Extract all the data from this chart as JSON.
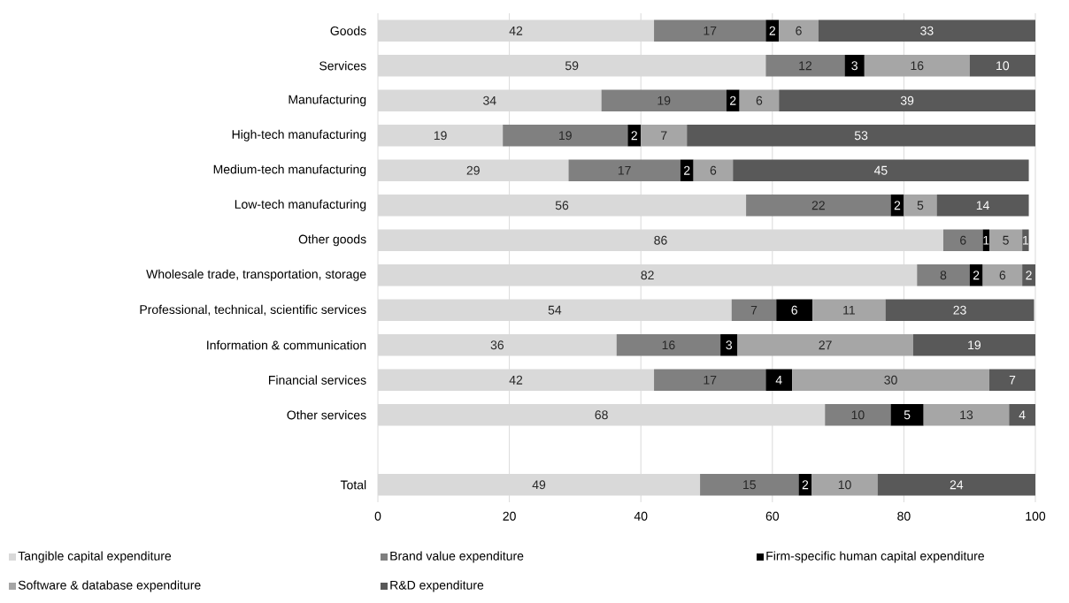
{
  "chart_data": {
    "type": "bar",
    "orientation": "horizontal",
    "stacked": true,
    "grid": "x",
    "legend": "bottom",
    "categories": [
      "Goods",
      "Services",
      "Manufacturing",
      "High-tech manufacturing",
      "Medium-tech manufacturing",
      "Low-tech manufacturing",
      "Other goods",
      "Wholesale trade, transportation, storage",
      "Professional, technical, scientific services",
      "Information & communication",
      "Financial services",
      "Other services",
      null,
      "Total"
    ],
    "xlim": [
      0,
      100
    ],
    "xticks": [
      0,
      20,
      40,
      60,
      80,
      100
    ],
    "series": [
      {
        "name": "Tangible capital expenditure",
        "color": "#d9d9d9",
        "values": [
          42,
          59,
          34,
          19,
          29,
          56,
          86,
          82,
          53.8,
          36.3,
          42,
          68,
          null,
          49
        ],
        "value_labels": [
          "42",
          "59",
          "34",
          "19",
          "29",
          "56",
          "86",
          "82",
          "54",
          "36",
          "42",
          "68",
          null,
          "49"
        ]
      },
      {
        "name": "Brand value expenditure",
        "color": "#808080",
        "values": [
          17,
          12,
          19,
          19,
          17,
          22,
          6,
          8,
          6.8,
          15.8,
          17,
          10,
          null,
          15
        ],
        "value_labels": [
          "17",
          "12",
          "19",
          "19",
          "17",
          "22",
          "6",
          "8",
          "7",
          "16",
          "17",
          "10",
          null,
          "15"
        ]
      },
      {
        "name": "Firm-specific human capital expenditure",
        "color": "#000000",
        "values": [
          2,
          3,
          2,
          2,
          2,
          2,
          1,
          2,
          5.5,
          2.6,
          4,
          5,
          null,
          2
        ],
        "value_labels": [
          "2",
          "3",
          "2",
          "2",
          "2",
          "2",
          "1",
          "2",
          "6",
          "3",
          "4",
          "5",
          null,
          "2"
        ]
      },
      {
        "name": "Software & database expenditure",
        "color": "#a6a6a6",
        "values": [
          6,
          16,
          6,
          7,
          6,
          5,
          5,
          6,
          11.1,
          26.7,
          30,
          13,
          null,
          10
        ],
        "value_labels": [
          "6",
          "16",
          "6",
          "7",
          "6",
          "5",
          "5",
          "6",
          "11",
          "27",
          "30",
          "13",
          null,
          "10"
        ]
      },
      {
        "name": "R&D expenditure",
        "color": "#595959",
        "values": [
          33,
          10,
          39,
          53,
          45,
          14,
          1,
          2,
          22.6,
          18.6,
          7,
          4,
          null,
          24
        ],
        "value_labels": [
          "33",
          "10",
          "39",
          "53",
          "45",
          "14",
          "1",
          "2",
          "23",
          "19",
          "7",
          "4",
          null,
          "24"
        ]
      }
    ]
  }
}
